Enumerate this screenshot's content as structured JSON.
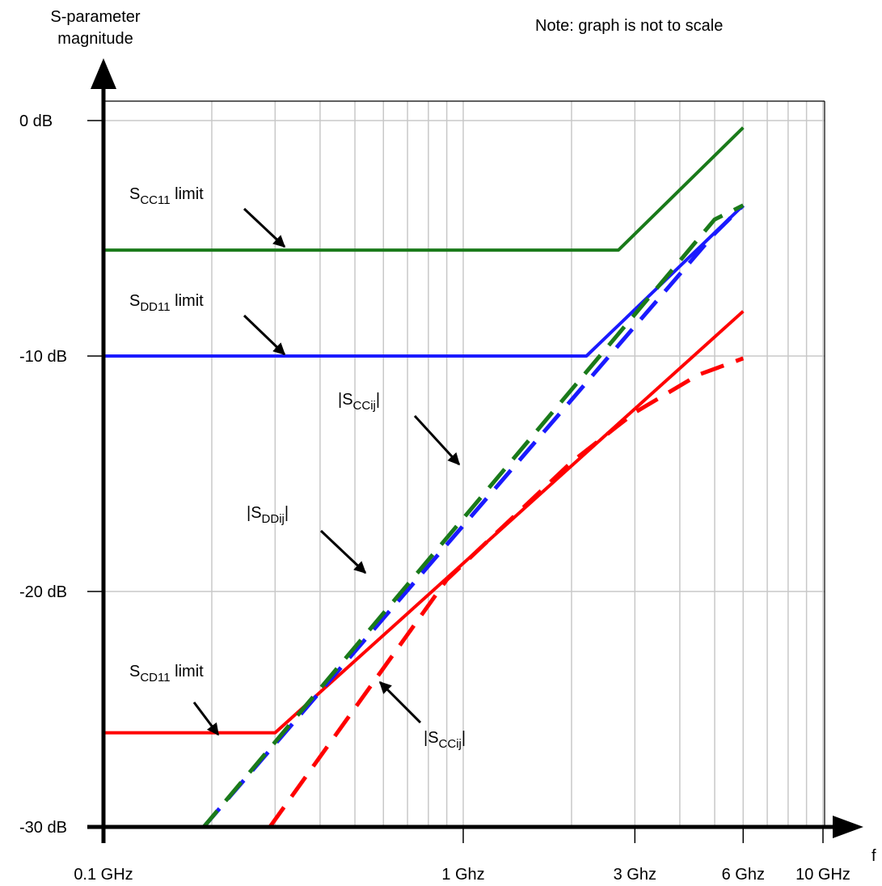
{
  "chart_data": {
    "type": "line",
    "title": "",
    "note": "Note: graph is not to scale",
    "ylabel_line1": "S-parameter",
    "ylabel_line2": "magnitude",
    "xlabel": "f",
    "x_scale": "log",
    "xlim": [
      0.1,
      12
    ],
    "ylim": [
      -30,
      2.5
    ],
    "grid": true,
    "x_tick_values": [
      0.1,
      1,
      3,
      6,
      10
    ],
    "x_tick_labels": [
      "0.1 GHz",
      "1 Ghz",
      "3 Ghz",
      "6 Ghz",
      "10 GHz"
    ],
    "y_tick_values": [
      0,
      -10,
      -20,
      -30
    ],
    "y_tick_labels": [
      "0 dB",
      "-10 dB",
      "-20 dB",
      "-30 dB"
    ],
    "series": [
      {
        "id": "scc11_limit",
        "label_main": "S",
        "label_sub": "CC11",
        "label_tail": " limit",
        "color": "#1a7a1a",
        "style": "solid",
        "x": [
          0.1,
          2.7,
          6.0
        ],
        "y": [
          -5.5,
          -5.5,
          -0.3
        ]
      },
      {
        "id": "sdd11_limit",
        "label_main": "S",
        "label_sub": "DD11",
        "label_tail": " limit",
        "color": "#1a1aff",
        "style": "solid",
        "x": [
          0.1,
          2.2,
          6.0
        ],
        "y": [
          -10.0,
          -10.0,
          -3.6
        ]
      },
      {
        "id": "scd11_limit",
        "label_main": "S",
        "label_sub": "CD11",
        "label_tail": " limit",
        "color": "#ff0000",
        "style": "solid",
        "x": [
          0.1,
          0.3,
          6.0
        ],
        "y": [
          -26.0,
          -26.0,
          -8.1
        ]
      },
      {
        "id": "sddij",
        "label_main": "|S",
        "label_sub": "DDij",
        "label_tail": "|",
        "color": "#1a1aff",
        "style": "dashed",
        "x": [
          0.19,
          5.0,
          6.0
        ],
        "y": [
          -30.0,
          -4.8,
          -3.6
        ]
      },
      {
        "id": "sccij_green",
        "label_main": "|S",
        "label_sub": "CCij",
        "label_tail": "|",
        "color": "#1a7a1a",
        "style": "dashed",
        "x": [
          0.19,
          5.0,
          6.0
        ],
        "y": [
          -30.0,
          -4.2,
          -3.6
        ]
      },
      {
        "id": "sccij_red",
        "label_main": "|S",
        "label_sub": "CCij",
        "label_tail": "|",
        "color": "#ff0000",
        "style": "dashed",
        "x": [
          0.29,
          0.9,
          2.0,
          3.0,
          4.5,
          6.0
        ],
        "y": [
          -30.0,
          -19.5,
          -14.5,
          -12.4,
          -10.8,
          -10.1
        ]
      }
    ]
  }
}
